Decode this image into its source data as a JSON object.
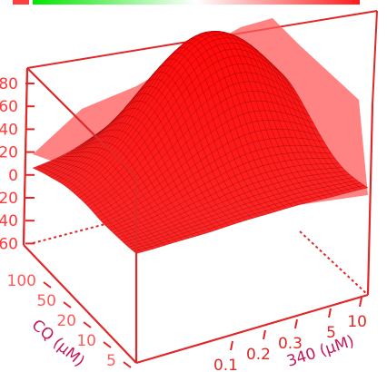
{
  "chart_data": {
    "type": "surface3d",
    "color_scale": {
      "low": "#00e600",
      "mid": "#ffffff",
      "high": "#ff1a1a"
    },
    "surface_color": "#ff1a1a",
    "edge_color": "#8a0000",
    "box_color": "#e02828",
    "x_axis": {
      "label": "340 (µM)",
      "ticks": [
        "0.1",
        "0.2",
        "0.3",
        "5",
        "10"
      ],
      "log_scale": true
    },
    "y_axis": {
      "label": "CQ (µM)",
      "ticks": [
        "5",
        "10",
        "20",
        "50",
        "100"
      ],
      "log_scale": true
    },
    "z_axis": {
      "ticks": [
        "80",
        "60",
        "40",
        "20",
        "0",
        "-20",
        "-40",
        "-60"
      ],
      "range": [
        -70,
        90
      ]
    },
    "legend": "color bar along top edge"
  }
}
